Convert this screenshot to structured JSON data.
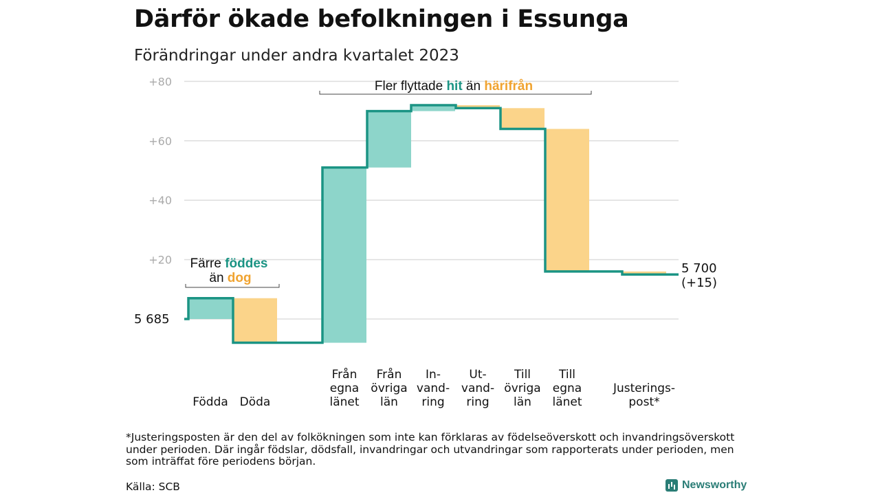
{
  "title": "Därför ökade befolkningen i Essunga",
  "subtitle": "Förändringar under andra kvartalet 2023",
  "chart_data": {
    "type": "waterfall",
    "start_value": 0,
    "start_label": "5  685",
    "end_label": [
      "5 700",
      "(+15)"
    ],
    "y_ticks": [
      {
        "value": 20,
        "label": "+20"
      },
      {
        "value": 40,
        "label": "+40"
      },
      {
        "value": 60,
        "label": "+60"
      },
      {
        "value": 80,
        "label": "+80"
      }
    ],
    "ylim": [
      -10,
      82
    ],
    "grid": true,
    "steps": [
      {
        "label": [
          "Födda"
        ],
        "value": 7,
        "kind": "in"
      },
      {
        "label": [
          "Döda"
        ],
        "value": -15,
        "kind": "out"
      },
      {
        "label": [
          "Från",
          "egna",
          "länet"
        ],
        "value": 59,
        "kind": "in"
      },
      {
        "label": [
          "Från",
          "övriga",
          "län"
        ],
        "value": 19,
        "kind": "in"
      },
      {
        "label": [
          "In-",
          "vand-",
          "ring"
        ],
        "value": 2,
        "kind": "in"
      },
      {
        "label": [
          "Ut-",
          "vand-",
          "ring"
        ],
        "value": -1,
        "kind": "out"
      },
      {
        "label": [
          "Till",
          "övriga",
          "län"
        ],
        "value": -7,
        "kind": "out"
      },
      {
        "label": [
          "Till",
          "egna",
          "länet"
        ],
        "value": -48,
        "kind": "out"
      },
      {
        "label": [
          "Justerings-",
          "post*"
        ],
        "value": -1,
        "kind": "out"
      }
    ],
    "colors": {
      "in": "#8dd5ca",
      "out": "#fbd48a",
      "line": "#1b9484",
      "grid": "#dddddd",
      "tick": "#aaaaaa"
    },
    "annotations": [
      {
        "parts": [
          {
            "text": "Färre ",
            "style": "plain"
          },
          {
            "text": "föddes",
            "style": "in"
          }
        ],
        "parts2": [
          {
            "text": "än ",
            "style": "plain"
          },
          {
            "text": "dog",
            "style": "out"
          }
        ]
      },
      {
        "parts": [
          {
            "text": "Fler flyttade ",
            "style": "plain"
          },
          {
            "text": "hit",
            "style": "in"
          },
          {
            "text": " än ",
            "style": "plain"
          },
          {
            "text": "härifrån",
            "style": "out"
          }
        ]
      }
    ]
  },
  "footnote": "*Justeringsposten är den del av folkökningen som inte kan förklaras av födelseöverskott och invandringsöverskott under perioden. Där ingår födslar, dödsfall, invandringar och utvandringar som rapporterats under perioden, men som inträffat före periodens början.",
  "source": "Källa: SCB",
  "brand": "Newsworthy"
}
